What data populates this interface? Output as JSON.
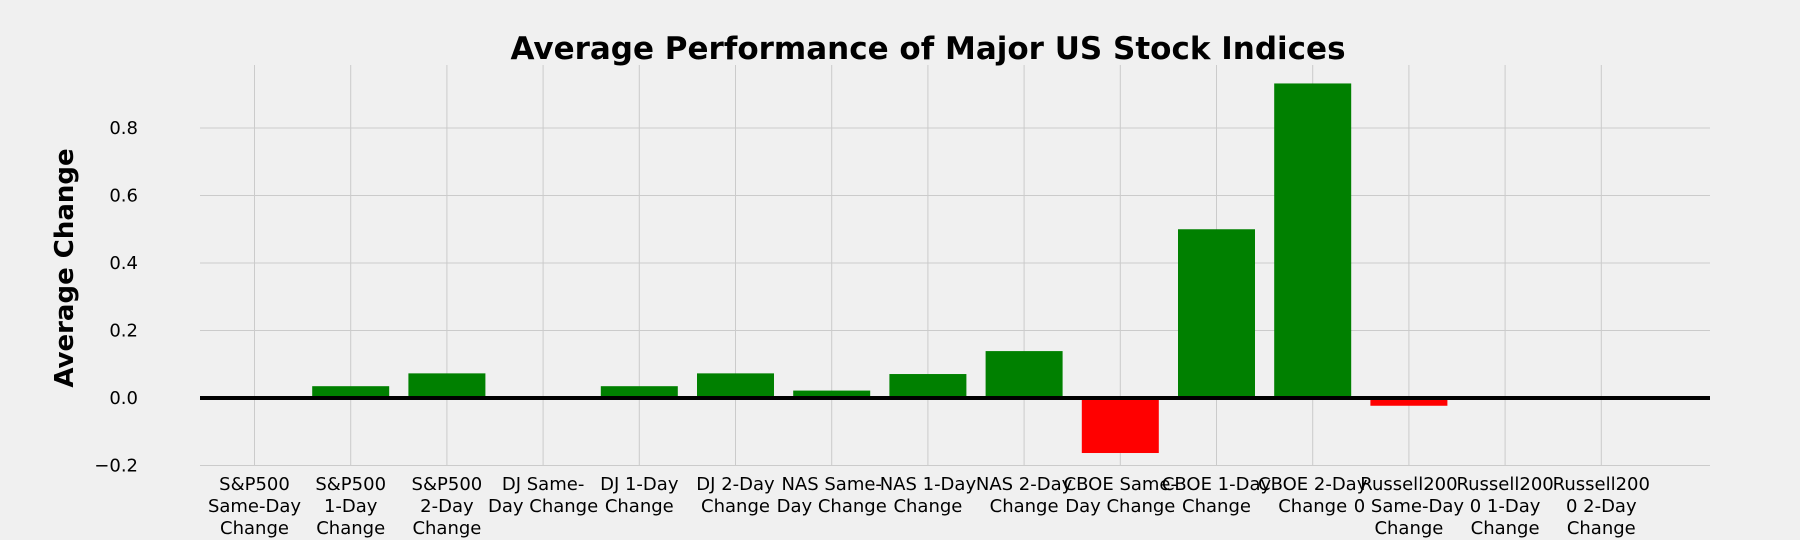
{
  "chart_data": {
    "type": "bar",
    "title": "Average Performance of Major US Stock Indices",
    "xlabel": "",
    "ylabel": "Average Change",
    "ylim": [
      -0.2,
      0.95
    ],
    "yticks": [
      -0.2,
      0.0,
      0.2,
      0.4,
      0.6,
      0.8
    ],
    "ytick_labels": [
      "−0.2",
      "0.0",
      "0.2",
      "0.4",
      "0.6",
      "0.8"
    ],
    "grid": true,
    "colors": {
      "positive": "#008000",
      "negative": "#ff0000",
      "zero_line": "#000000",
      "grid": "#cbcbcb",
      "background": "#f0f0f0"
    },
    "categories": [
      "S&P500 Same-Day Change",
      "S&P500 1-Day Change",
      "S&P500 2-Day Change",
      "DJ Same-Day Change",
      "DJ 1-Day Change",
      "DJ 2-Day Change",
      "NAS Same-Day Change",
      "NAS 1-Day Change",
      "NAS 2-Day Change",
      "CBOE Same-Day Change",
      "CBOE 1-Day Change",
      "CBOE 2-Day Change",
      "Russell2000 Same-Day Change",
      "Russell2000 1-Day Change",
      "Russell2000 2-Day Change"
    ],
    "category_label_lines": [
      [
        "S&P500",
        "Same-Day",
        "Change"
      ],
      [
        "S&P500",
        "1-Day",
        "Change"
      ],
      [
        "S&P500",
        "2-Day",
        "Change"
      ],
      [
        "DJ Same-",
        "Day Change"
      ],
      [
        "DJ 1-Day",
        "Change"
      ],
      [
        "DJ 2-Day",
        "Change"
      ],
      [
        "NAS Same-",
        "Day Change"
      ],
      [
        "NAS 1-Day",
        "Change"
      ],
      [
        "NAS 2-Day",
        "Change"
      ],
      [
        "CBOE Same-",
        "Day Change"
      ],
      [
        "CBOE 1-Day",
        "Change"
      ],
      [
        "CBOE 2-Day",
        "Change"
      ],
      [
        "Russell200",
        "0 Same-Day",
        "Change"
      ],
      [
        "Russell200",
        "0 1-Day",
        "Change"
      ],
      [
        "Russell200",
        "0 2-Day",
        "Change"
      ]
    ],
    "values": [
      0.0,
      0.035,
      0.073,
      0.0,
      0.035,
      0.073,
      0.022,
      0.071,
      0.139,
      -0.163,
      0.5,
      0.932,
      -0.023,
      0.0,
      0.0
    ]
  }
}
